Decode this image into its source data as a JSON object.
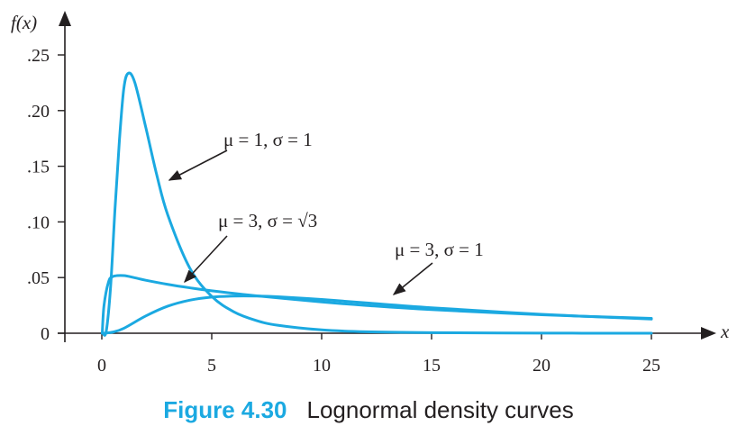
{
  "chart_data": {
    "type": "line",
    "ylabel": "f(x)",
    "xlabel": "x",
    "xlim": [
      0,
      25
    ],
    "ylim": [
      0,
      0.25
    ],
    "xticks": [
      "0",
      "5",
      "10",
      "15",
      "20",
      "25"
    ],
    "yticks": [
      "0",
      ".05",
      ".10",
      ".15",
      ".20",
      ".25"
    ],
    "series": [
      {
        "name": "μ = 1, σ = 1",
        "x": [
          0.05,
          0.2,
          0.4,
          0.6,
          0.8,
          1.0,
          1.2,
          1.5,
          2,
          2.5,
          3,
          4,
          5,
          6,
          7,
          8,
          10,
          12,
          15,
          20,
          25
        ],
        "values": [
          0,
          0.0016,
          0.0419,
          0.1118,
          0.1731,
          0.2197,
          0.2335,
          0.2253,
          0.1849,
          0.1422,
          0.1063,
          0.0586,
          0.0331,
          0.0193,
          0.0116,
          0.0072,
          0.003,
          0.0013,
          0.0005,
          0.0001,
          0.0
        ]
      },
      {
        "name": "μ = 3, σ = √3",
        "x": [
          0.02,
          0.1,
          0.3,
          0.5,
          1,
          1.5,
          2,
          3,
          4,
          5,
          7,
          10,
          12,
          15,
          20,
          25
        ],
        "values": [
          0,
          0.0249,
          0.0457,
          0.0509,
          0.0518,
          0.0498,
          0.0476,
          0.0439,
          0.0408,
          0.0381,
          0.0337,
          0.0281,
          0.025,
          0.0212,
          0.0166,
          0.0133
        ]
      },
      {
        "name": "μ = 3, σ = 1",
        "x": [
          0.05,
          0.5,
          1,
          2,
          3,
          4,
          5,
          6,
          7,
          8,
          10,
          12,
          15,
          20,
          25
        ],
        "values": [
          0,
          0.001,
          0.0044,
          0.0155,
          0.0243,
          0.0297,
          0.0325,
          0.0334,
          0.0334,
          0.0328,
          0.0303,
          0.0273,
          0.0229,
          0.017,
          0.0127
        ]
      }
    ],
    "annotations": [
      "μ = 1, σ = 1",
      "μ = 3, σ = √3",
      "μ = 3, σ = 1"
    ],
    "grid": false,
    "colors": {
      "curve": "#1ba9e1",
      "axis": "#231f20",
      "caption_accent": "#1ba9e1"
    }
  },
  "caption": {
    "figure_number": "Figure 4.30",
    "text": "Lognormal density curves"
  }
}
